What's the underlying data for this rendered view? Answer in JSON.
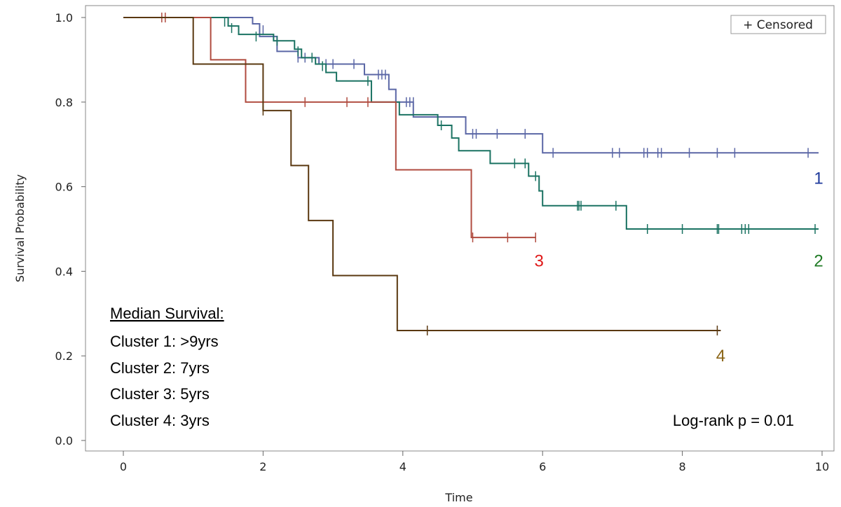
{
  "chart_data": {
    "type": "line",
    "subtype": "kaplan-meier step",
    "xlabel": "Time",
    "ylabel": "Survival Probability",
    "xlim": [
      0,
      10
    ],
    "ylim": [
      0,
      1
    ],
    "x_ticks": [
      "0",
      "2",
      "4",
      "6",
      "8",
      "10"
    ],
    "y_ticks": [
      "0.0",
      "0.2",
      "0.4",
      "0.6",
      "0.8",
      "1.0"
    ],
    "grid": false,
    "legend": {
      "label": "+ Censored",
      "placement": "top-right"
    },
    "series": [
      {
        "name": "1",
        "color": "#5b67a6",
        "label_color": "#1f3a9c",
        "steps": [
          [
            0,
            1.0
          ],
          [
            1.85,
            0.985
          ],
          [
            1.95,
            0.955
          ],
          [
            2.2,
            0.92
          ],
          [
            2.5,
            0.905
          ],
          [
            2.8,
            0.89
          ],
          [
            3.45,
            0.865
          ],
          [
            3.8,
            0.83
          ],
          [
            3.9,
            0.8
          ],
          [
            4.15,
            0.765
          ],
          [
            4.9,
            0.725
          ],
          [
            6.0,
            0.68
          ],
          [
            9.95,
            0.68
          ]
        ],
        "censored": [
          [
            1.95,
            0.975
          ],
          [
            2.0,
            0.97
          ],
          [
            2.5,
            0.905
          ],
          [
            2.6,
            0.905
          ],
          [
            2.9,
            0.89
          ],
          [
            3.0,
            0.89
          ],
          [
            3.3,
            0.89
          ],
          [
            3.65,
            0.865
          ],
          [
            3.7,
            0.865
          ],
          [
            3.75,
            0.865
          ],
          [
            4.05,
            0.8
          ],
          [
            4.1,
            0.8
          ],
          [
            4.15,
            0.8
          ],
          [
            5.0,
            0.725
          ],
          [
            5.05,
            0.725
          ],
          [
            5.35,
            0.725
          ],
          [
            5.75,
            0.725
          ],
          [
            6.15,
            0.68
          ],
          [
            7.0,
            0.68
          ],
          [
            7.1,
            0.68
          ],
          [
            7.45,
            0.68
          ],
          [
            7.5,
            0.68
          ],
          [
            7.65,
            0.68
          ],
          [
            7.7,
            0.68
          ],
          [
            8.1,
            0.68
          ],
          [
            8.5,
            0.68
          ],
          [
            8.75,
            0.68
          ],
          [
            9.8,
            0.68
          ]
        ]
      },
      {
        "name": "2",
        "color": "#1a7262",
        "label_color": "#1f7a24",
        "steps": [
          [
            0,
            1.0
          ],
          [
            1.5,
            0.98
          ],
          [
            1.65,
            0.96
          ],
          [
            2.15,
            0.945
          ],
          [
            2.45,
            0.925
          ],
          [
            2.55,
            0.905
          ],
          [
            2.75,
            0.89
          ],
          [
            2.9,
            0.87
          ],
          [
            3.05,
            0.85
          ],
          [
            3.55,
            0.8
          ],
          [
            3.95,
            0.77
          ],
          [
            4.5,
            0.745
          ],
          [
            4.7,
            0.715
          ],
          [
            4.8,
            0.685
          ],
          [
            5.25,
            0.655
          ],
          [
            5.8,
            0.625
          ],
          [
            5.95,
            0.59
          ],
          [
            6.0,
            0.555
          ],
          [
            7.2,
            0.5
          ],
          [
            9.95,
            0.5
          ]
        ],
        "censored": [
          [
            1.45,
            0.99
          ],
          [
            1.55,
            0.975
          ],
          [
            1.9,
            0.955
          ],
          [
            2.2,
            0.945
          ],
          [
            2.5,
            0.92
          ],
          [
            2.7,
            0.905
          ],
          [
            2.85,
            0.885
          ],
          [
            3.5,
            0.85
          ],
          [
            4.55,
            0.745
          ],
          [
            5.6,
            0.655
          ],
          [
            5.75,
            0.655
          ],
          [
            5.9,
            0.625
          ],
          [
            6.5,
            0.555
          ],
          [
            6.52,
            0.555
          ],
          [
            6.55,
            0.555
          ],
          [
            7.05,
            0.555
          ],
          [
            7.5,
            0.5
          ],
          [
            8.0,
            0.5
          ],
          [
            8.5,
            0.5
          ],
          [
            8.52,
            0.5
          ],
          [
            8.85,
            0.5
          ],
          [
            8.9,
            0.5
          ],
          [
            8.95,
            0.5
          ],
          [
            9.9,
            0.5
          ]
        ]
      },
      {
        "name": "3",
        "color": "#b04b3f",
        "label_color": "#e01a1a",
        "steps": [
          [
            0,
            1.0
          ],
          [
            1.25,
            0.9
          ],
          [
            1.75,
            0.8
          ],
          [
            3.9,
            0.64
          ],
          [
            4.98,
            0.48
          ],
          [
            5.9,
            0.48
          ]
        ],
        "censored": [
          [
            0.55,
            1.0
          ],
          [
            0.6,
            1.0
          ],
          [
            2.6,
            0.8
          ],
          [
            3.2,
            0.8
          ],
          [
            3.5,
            0.8
          ],
          [
            5.0,
            0.48
          ],
          [
            5.5,
            0.48
          ],
          [
            5.9,
            0.48
          ]
        ]
      },
      {
        "name": "4",
        "color": "#5a3810",
        "label_color": "#8a6416",
        "steps": [
          [
            0,
            1.0
          ],
          [
            1.0,
            0.89
          ],
          [
            2.0,
            0.78
          ],
          [
            2.4,
            0.65
          ],
          [
            2.65,
            0.52
          ],
          [
            3.0,
            0.39
          ],
          [
            3.92,
            0.26
          ],
          [
            8.55,
            0.26
          ]
        ],
        "censored": [
          [
            2.0,
            0.78
          ],
          [
            4.35,
            0.26
          ],
          [
            8.5,
            0.26
          ]
        ]
      }
    ],
    "annotations": {
      "median_title": "Median Survival:",
      "median_lines": [
        "Cluster 1: >9yrs",
        "Cluster 2: 7yrs",
        "Cluster 3: 5yrs",
        "Cluster 4: 3yrs"
      ],
      "logrank": "Log-rank p = 0.01"
    },
    "curve_labels": [
      {
        "text": "1",
        "x": 9.95,
        "y": 0.62
      },
      {
        "text": "2",
        "x": 9.95,
        "y": 0.425
      },
      {
        "text": "3",
        "x": 5.95,
        "y": 0.425
      },
      {
        "text": "4",
        "x": 8.55,
        "y": 0.2
      }
    ]
  }
}
